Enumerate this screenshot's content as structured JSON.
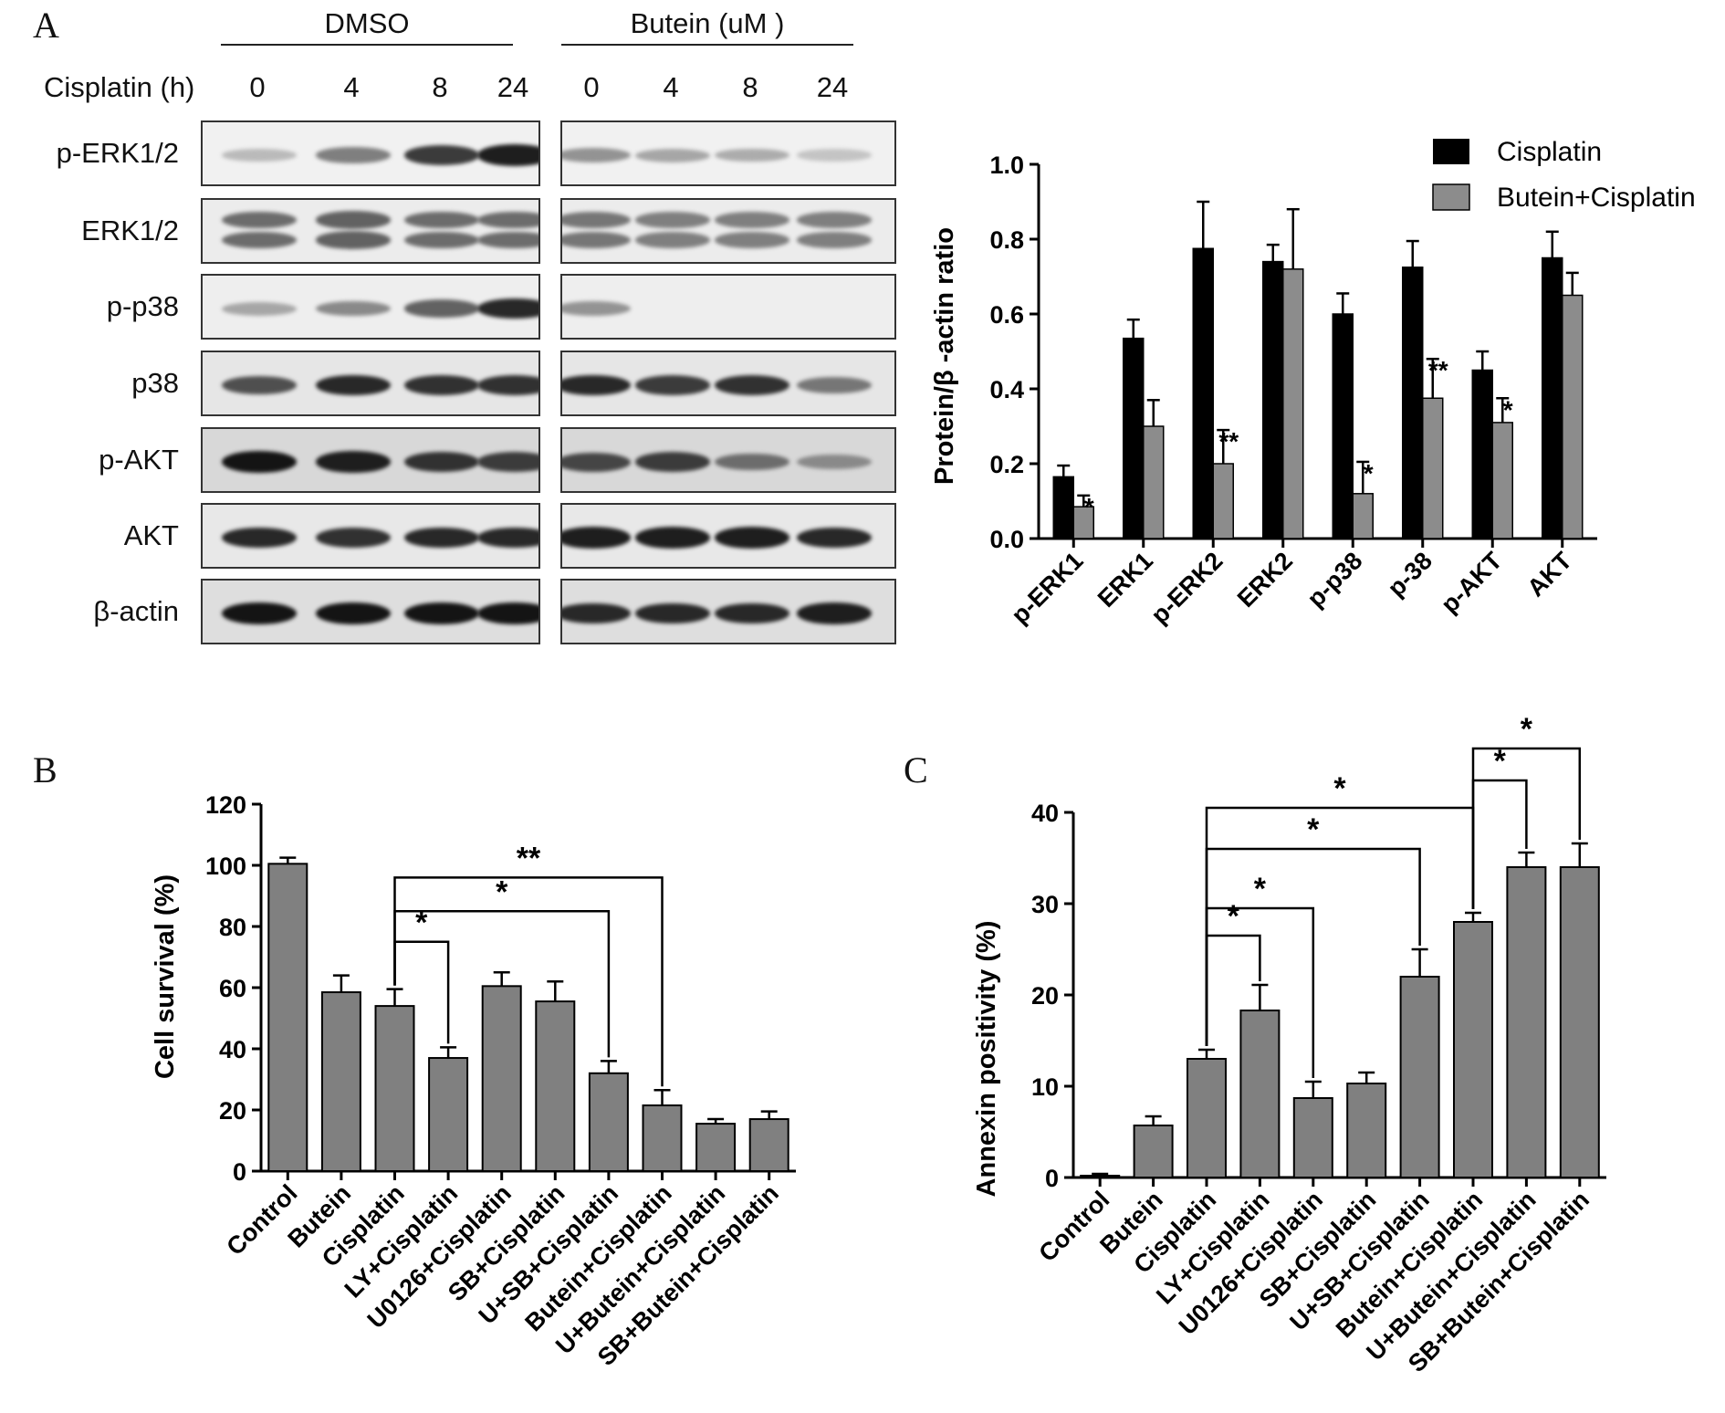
{
  "panel_a": {
    "letter": "A",
    "group_left": "DMSO",
    "group_right": "Butein (uM )",
    "time_label": "Cisplatin (h)",
    "lanes": [
      "0",
      "4",
      "8",
      "24",
      "0",
      "4",
      "8",
      "24"
    ],
    "rows": [
      {
        "label": "p-ERK1/2",
        "intensities": [
          0.15,
          0.45,
          0.8,
          0.95,
          0.35,
          0.25,
          0.22,
          0.1
        ],
        "bg": "#f1f1f1",
        "double": false
      },
      {
        "label": "ERK1/2",
        "intensities": [
          0.55,
          0.6,
          0.55,
          0.55,
          0.5,
          0.45,
          0.45,
          0.45
        ],
        "bg": "#ececec",
        "double": true
      },
      {
        "label": "p-p38",
        "intensities": [
          0.25,
          0.4,
          0.6,
          0.9,
          0.35,
          0,
          0,
          0
        ],
        "bg": "#eeeeee",
        "double": false
      },
      {
        "label": "p38",
        "intensities": [
          0.7,
          0.9,
          0.85,
          0.85,
          0.9,
          0.8,
          0.85,
          0.5
        ],
        "bg": "#e6e6e6",
        "double": false
      },
      {
        "label": "p-AKT",
        "intensities": [
          1.0,
          0.95,
          0.85,
          0.8,
          0.75,
          0.8,
          0.55,
          0.4
        ],
        "bg": "#d8d8d8",
        "double": false
      },
      {
        "label": "AKT",
        "intensities": [
          0.9,
          0.85,
          0.9,
          0.9,
          0.95,
          0.95,
          0.95,
          0.9
        ],
        "bg": "#e8e8e8",
        "double": false
      },
      {
        "label": "β-actin",
        "intensities": [
          1.0,
          1.0,
          1.0,
          1.0,
          0.9,
          0.9,
          0.9,
          0.95
        ],
        "bg": "#dedede",
        "double": false
      }
    ]
  },
  "chart_data": [
    {
      "type": "bar",
      "ylabel": "Protein/β -actin ratio",
      "ylim": [
        0,
        1.0
      ],
      "yticks": [
        "0.0",
        "0.2",
        "0.4",
        "0.6",
        "0.8",
        "1.0"
      ],
      "categories": [
        "p-ERK1",
        "ERK1",
        "p-ERK2",
        "ERK2",
        "p-p38",
        "p-38",
        "p-AKT",
        "AKT"
      ],
      "series": [
        {
          "name": "Cisplatin",
          "color": "#000000",
          "values": [
            0.165,
            0.535,
            0.775,
            0.74,
            0.6,
            0.725,
            0.45,
            0.75
          ],
          "errors": [
            0.03,
            0.05,
            0.125,
            0.045,
            0.055,
            0.07,
            0.05,
            0.07
          ]
        },
        {
          "name": "Butein+Cisplatin",
          "color": "#8c8c8c",
          "values": [
            0.085,
            0.3,
            0.2,
            0.72,
            0.12,
            0.375,
            0.31,
            0.65
          ],
          "errors": [
            0.03,
            0.07,
            0.09,
            0.16,
            0.085,
            0.105,
            0.065,
            0.06
          ]
        }
      ],
      "annotations": [
        "*",
        "",
        "**",
        "",
        "*",
        "**",
        "*",
        ""
      ],
      "legend": "top-right"
    },
    {
      "type": "bar",
      "panel": "B",
      "ylabel": "Cell survival (%)",
      "ylim": [
        0,
        120
      ],
      "yticks": [
        "0",
        "20",
        "40",
        "60",
        "80",
        "100",
        "120"
      ],
      "categories": [
        "Control",
        "Butein",
        "Cisplatin",
        "LY+Cisplatin",
        "U0126+Cisplatin",
        "SB+Cisplatin",
        "U+SB+Cisplatin",
        "Butein+Cisplatin",
        "U+Butein+Cisplatin",
        "SB+Butein+Cisplatin"
      ],
      "values": [
        100.5,
        58.5,
        54,
        37,
        60.5,
        55.5,
        32,
        21.5,
        15.5,
        17
      ],
      "errors": [
        2,
        5.5,
        5.5,
        3.5,
        4.5,
        6.5,
        4,
        5,
        1.5,
        2.5
      ],
      "color": "#808080",
      "comparisons": [
        {
          "from": 2,
          "to": 3,
          "y": 75,
          "label": "*"
        },
        {
          "from": 2,
          "to": 6,
          "y": 85,
          "label": "*"
        },
        {
          "from": 2,
          "to": 7,
          "y": 96,
          "label": "**"
        }
      ]
    },
    {
      "type": "bar",
      "panel": "C",
      "ylabel": "Annexin  positivity (%)",
      "ylim": [
        0,
        40
      ],
      "yticks": [
        "0",
        "10",
        "20",
        "30",
        "40"
      ],
      "categories": [
        "Control",
        "Butein",
        "Cisplatin",
        "LY+Cisplatin",
        "U0126+Cisplatin",
        "SB+Cisplatin",
        "U+SB+Cisplatin",
        "Butein+Cisplatin",
        "U+Butein+Cisplatin",
        "SB+Butein+Cisplatin"
      ],
      "values": [
        0.2,
        5.7,
        13,
        18.3,
        8.7,
        10.3,
        22,
        28,
        34,
        34
      ],
      "errors": [
        0.2,
        1,
        1,
        2.8,
        1.8,
        1.2,
        3,
        1,
        1.6,
        2.6
      ],
      "color": "#808080",
      "comparisons": [
        {
          "from": 2,
          "to": 3,
          "y": 26.5,
          "label": "*"
        },
        {
          "from": 2,
          "to": 4,
          "y": 29.5,
          "label": "*"
        },
        {
          "from": 2,
          "to": 6,
          "y": 36,
          "label": "*"
        },
        {
          "from": 2,
          "to": 7,
          "y": 40.5,
          "label": "*"
        },
        {
          "from": 7,
          "to": 8,
          "y": 43.5,
          "label": "*"
        },
        {
          "from": 7,
          "to": 9,
          "y": 47,
          "label": "*"
        }
      ]
    }
  ],
  "panel_b": {
    "letter": "B"
  },
  "panel_c": {
    "letter": "C"
  }
}
